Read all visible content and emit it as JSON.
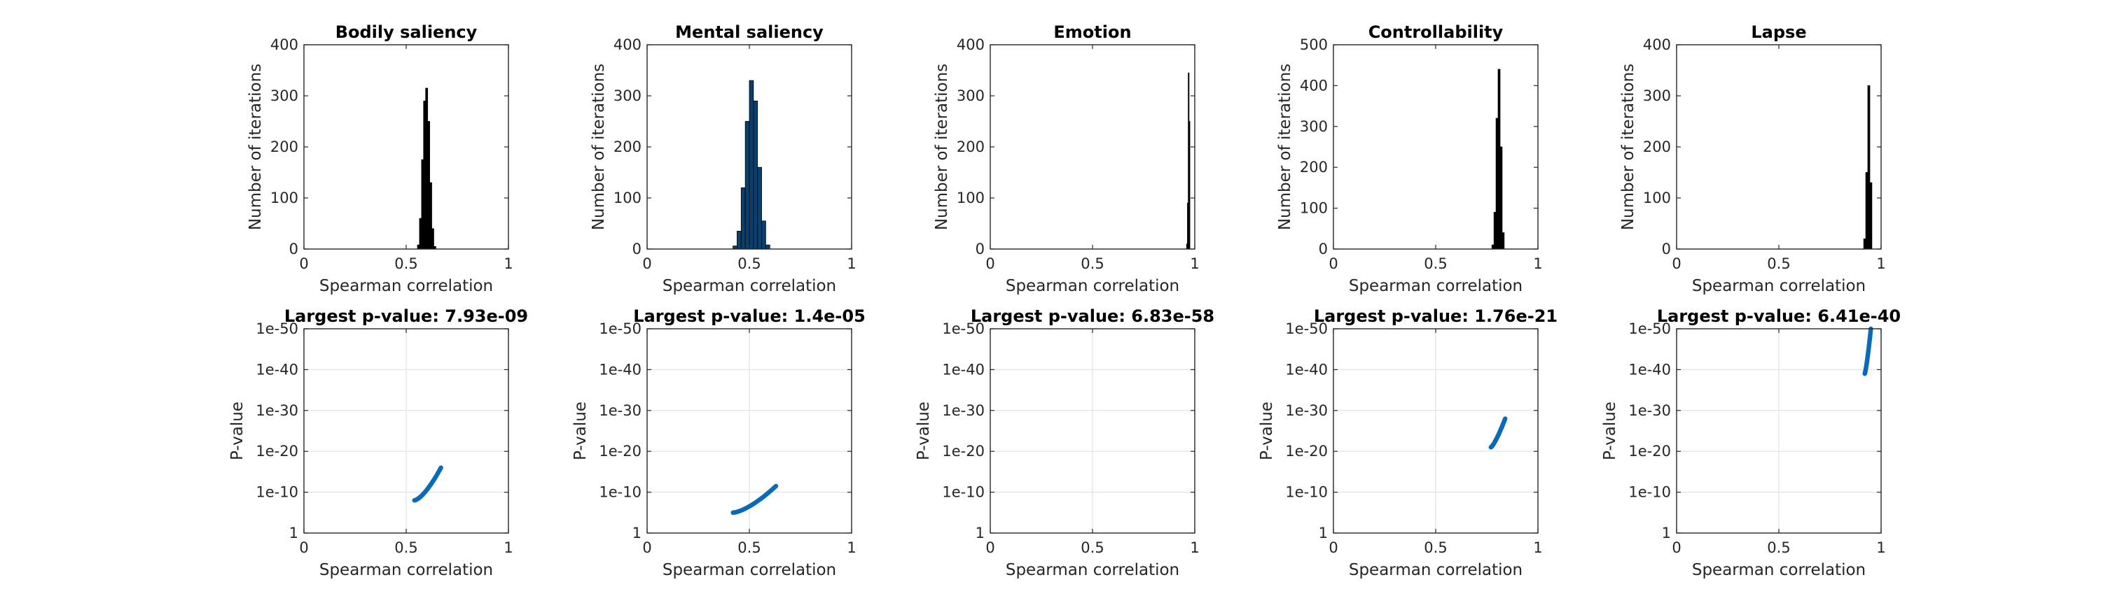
{
  "colors": {
    "histogram_bar": "#000000",
    "histogram_bar_alt": "#0b3f6b",
    "scatter_point": "#0a6ab9",
    "grid": "#e3e3e3",
    "axes": "#262626"
  },
  "chart_data": [
    {
      "type": "bar",
      "panel": "histogram",
      "title": "Bodily saliency",
      "xlabel": "Spearman correlation",
      "ylabel": "Number of iterations",
      "xlim": [
        0,
        1
      ],
      "ylim": [
        0,
        400
      ],
      "xticks": [
        "0",
        "0.5",
        "1"
      ],
      "yticks": [
        "0",
        "100",
        "200",
        "300",
        "400"
      ],
      "grid": false,
      "bin_centers": [
        0.56,
        0.57,
        0.58,
        0.59,
        0.6,
        0.61,
        0.62,
        0.63,
        0.64
      ],
      "values": [
        8,
        60,
        175,
        290,
        315,
        250,
        130,
        40,
        5
      ]
    },
    {
      "type": "bar",
      "panel": "histogram",
      "title": "Mental saliency",
      "xlabel": "Spearman correlation",
      "ylabel": "Number of iterations",
      "xlim": [
        0,
        1
      ],
      "ylim": [
        0,
        400
      ],
      "xticks": [
        "0",
        "0.5",
        "1"
      ],
      "yticks": [
        "0",
        "100",
        "200",
        "300",
        "400"
      ],
      "grid": false,
      "bin_centers": [
        0.43,
        0.45,
        0.47,
        0.49,
        0.51,
        0.53,
        0.55,
        0.57,
        0.59
      ],
      "values": [
        6,
        35,
        120,
        250,
        330,
        290,
        160,
        55,
        8
      ]
    },
    {
      "type": "bar",
      "panel": "histogram",
      "title": "Emotion",
      "xlabel": "Spearman correlation",
      "ylabel": "Number of iterations",
      "xlim": [
        0,
        1
      ],
      "ylim": [
        0,
        400
      ],
      "xticks": [
        "0",
        "0.5",
        "1"
      ],
      "yticks": [
        "0",
        "100",
        "200",
        "300",
        "400"
      ],
      "grid": false,
      "bin_centers": [
        0.962,
        0.966,
        0.97,
        0.974
      ],
      "values": [
        10,
        90,
        345,
        250
      ]
    },
    {
      "type": "bar",
      "panel": "histogram",
      "title": "Controllability",
      "xlabel": "Spearman correlation",
      "ylabel": "Number of iterations",
      "xlim": [
        0,
        1
      ],
      "ylim": [
        0,
        500
      ],
      "xticks": [
        "0",
        "0.5",
        "1"
      ],
      "yticks": [
        "0",
        "100",
        "200",
        "300",
        "400",
        "500"
      ],
      "grid": false,
      "bin_centers": [
        0.78,
        0.79,
        0.8,
        0.81,
        0.82,
        0.83
      ],
      "values": [
        10,
        90,
        320,
        440,
        250,
        40
      ]
    },
    {
      "type": "bar",
      "panel": "histogram",
      "title": "Lapse",
      "xlabel": "Spearman correlation",
      "ylabel": "Number of iterations",
      "xlim": [
        0,
        1
      ],
      "ylim": [
        0,
        400
      ],
      "xticks": [
        "0",
        "0.5",
        "1"
      ],
      "yticks": [
        "0",
        "100",
        "200",
        "300",
        "400"
      ],
      "grid": false,
      "bin_centers": [
        0.92,
        0.93,
        0.94,
        0.95
      ],
      "values": [
        20,
        150,
        320,
        130
      ]
    },
    {
      "type": "scatter",
      "panel": "pvalue",
      "title": "Largest p-value: 7.93e-09",
      "xlabel": "Spearman correlation",
      "ylabel": "P-value",
      "xlim": [
        0,
        1
      ],
      "ylim_log10_inverted": [
        0,
        -50
      ],
      "xticks": [
        "0",
        "0.5",
        "1"
      ],
      "yticks": [
        "1",
        "1e-10",
        "1e-20",
        "1e-30",
        "1e-40",
        "1e-50"
      ],
      "grid": true,
      "x_range": [
        0.54,
        0.67
      ],
      "neg_log10_p_range": [
        8,
        16
      ],
      "curve": 1.5
    },
    {
      "type": "scatter",
      "panel": "pvalue",
      "title": "Largest p-value: 1.4e-05",
      "xlabel": "Spearman correlation",
      "ylabel": "P-value",
      "xlim": [
        0,
        1
      ],
      "ylim_log10_inverted": [
        0,
        -50
      ],
      "xticks": [
        "0",
        "0.5",
        "1"
      ],
      "yticks": [
        "1",
        "1e-10",
        "1e-20",
        "1e-30",
        "1e-40",
        "1e-50"
      ],
      "grid": true,
      "x_range": [
        0.42,
        0.63
      ],
      "neg_log10_p_range": [
        5,
        11.5
      ],
      "curve": 1.5
    },
    {
      "type": "scatter",
      "panel": "pvalue",
      "title": "Largest p-value: 6.83e-58",
      "xlabel": "Spearman correlation",
      "ylabel": "P-value",
      "xlim": [
        0,
        1
      ],
      "ylim_log10_inverted": [
        0,
        -50
      ],
      "xticks": [
        "0",
        "0.5",
        "1"
      ],
      "yticks": [
        "1",
        "1e-10",
        "1e-20",
        "1e-30",
        "1e-40",
        "1e-50"
      ],
      "grid": true,
      "x_range": [],
      "neg_log10_p_range": [],
      "curve": 1
    },
    {
      "type": "scatter",
      "panel": "pvalue",
      "title": "Largest p-value: 1.76e-21",
      "xlabel": "Spearman correlation",
      "ylabel": "P-value",
      "xlim": [
        0,
        1
      ],
      "ylim_log10_inverted": [
        0,
        -50
      ],
      "xticks": [
        "0",
        "0.5",
        "1"
      ],
      "yticks": [
        "1",
        "1e-10",
        "1e-20",
        "1e-30",
        "1e-40",
        "1e-50"
      ],
      "grid": true,
      "x_range": [
        0.77,
        0.84
      ],
      "neg_log10_p_range": [
        21,
        28
      ],
      "curve": 1.3
    },
    {
      "type": "scatter",
      "panel": "pvalue",
      "title": "Largest p-value: 6.41e-40",
      "xlabel": "Spearman correlation",
      "ylabel": "P-value",
      "xlim": [
        0,
        1
      ],
      "ylim_log10_inverted": [
        0,
        -50
      ],
      "xticks": [
        "0",
        "0.5",
        "1"
      ],
      "yticks": [
        "1",
        "1e-10",
        "1e-20",
        "1e-30",
        "1e-40",
        "1e-50"
      ],
      "grid": true,
      "x_range": [
        0.92,
        0.95
      ],
      "neg_log10_p_range": [
        39,
        50
      ],
      "curve": 1.3
    }
  ]
}
